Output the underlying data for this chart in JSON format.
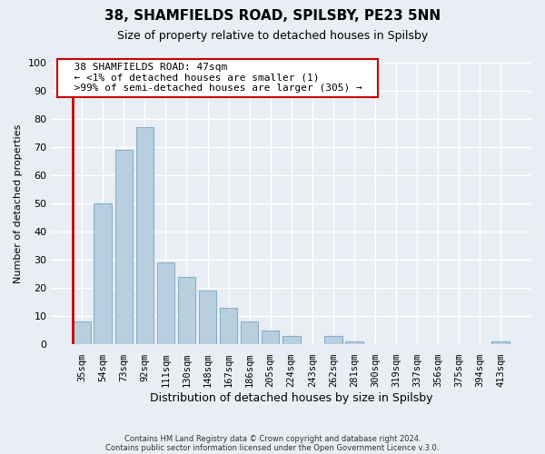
{
  "title": "38, SHAMFIELDS ROAD, SPILSBY, PE23 5NN",
  "subtitle": "Size of property relative to detached houses in Spilsby",
  "xlabel": "Distribution of detached houses by size in Spilsby",
  "ylabel": "Number of detached properties",
  "bar_labels": [
    "35sqm",
    "54sqm",
    "73sqm",
    "92sqm",
    "111sqm",
    "130sqm",
    "148sqm",
    "167sqm",
    "186sqm",
    "205sqm",
    "224sqm",
    "243sqm",
    "262sqm",
    "281sqm",
    "300sqm",
    "319sqm",
    "337sqm",
    "356sqm",
    "375sqm",
    "394sqm",
    "413sqm"
  ],
  "bar_values": [
    8,
    50,
    69,
    77,
    29,
    24,
    19,
    13,
    8,
    5,
    3,
    0,
    3,
    1,
    0,
    0,
    0,
    0,
    0,
    0,
    1
  ],
  "highlight_index": 0,
  "bar_color": "#b8cfe0",
  "bar_edge_color": "#8aaec8",
  "highlight_line_color": "#cc0000",
  "ylim": [
    0,
    100
  ],
  "yticks": [
    0,
    10,
    20,
    30,
    40,
    50,
    60,
    70,
    80,
    90,
    100
  ],
  "annotation_title": "38 SHAMFIELDS ROAD: 47sqm",
  "annotation_line1": "← <1% of detached houses are smaller (1)",
  "annotation_line2": ">99% of semi-detached houses are larger (305) →",
  "footer1": "Contains HM Land Registry data © Crown copyright and database right 2024.",
  "footer2": "Contains public sector information licensed under the Open Government Licence v.3.0.",
  "background_color": "#e8eef4",
  "plot_bg_color": "#e8eef4",
  "grid_color": "#ffffff",
  "annotation_box_color": "#ffffff",
  "annotation_border_color": "#cc0000"
}
